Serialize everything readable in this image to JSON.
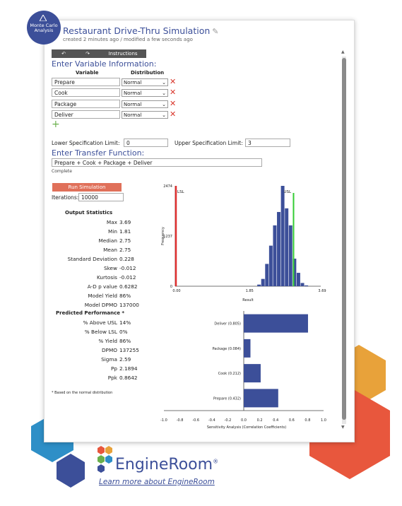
{
  "badge": {
    "line1": "Monte Carlo",
    "line2": "Analysis"
  },
  "header": {
    "title": "Restaurant Drive-Thru Simulation",
    "subtitle": "created 2 minutes ago / modified a few seconds ago"
  },
  "toolbar": {
    "undo_icon": "undo-icon",
    "redo_icon": "redo-icon",
    "instructions_label": "Instructions"
  },
  "variables": {
    "heading": "Enter Variable Information:",
    "col_variable": "Variable",
    "col_distribution": "Distribution",
    "rows": [
      {
        "name": "Prepare",
        "distribution": "Normal"
      },
      {
        "name": "Cook",
        "distribution": "Normal"
      },
      {
        "name": "Package",
        "distribution": "Normal"
      },
      {
        "name": "Deliver",
        "distribution": "Normal"
      }
    ]
  },
  "limits": {
    "lsl_label": "Lower Specification Limit:",
    "lsl_value": "0",
    "usl_label": "Upper Specification Limit:",
    "usl_value": "3"
  },
  "transfer": {
    "heading": "Enter Transfer Function:",
    "value": "Prepare + Cook + Package + Deliver",
    "status": "Complete"
  },
  "simulation": {
    "run_label": "Run Simulation",
    "iterations_label": "Iterations:",
    "iterations_value": "10000"
  },
  "output": {
    "heading": "Output Statistics",
    "stats": [
      {
        "label": "Max",
        "value": "3.69"
      },
      {
        "label": "Min",
        "value": "1.81"
      },
      {
        "label": "Median",
        "value": "2.75"
      },
      {
        "label": "Mean",
        "value": "2.75"
      },
      {
        "label": "Standard Deviation",
        "value": "0.228"
      },
      {
        "label": "Skew",
        "value": "-0.012"
      },
      {
        "label": "Kurtosis",
        "value": "-0.012"
      },
      {
        "label": "A-D p value",
        "value": "0.6282"
      },
      {
        "label": "Model Yield",
        "value": "86%"
      },
      {
        "label": "Model DPMO",
        "value": "137000"
      }
    ]
  },
  "predicted": {
    "heading": "Predicted Performance *",
    "stats": [
      {
        "label": "% Above USL",
        "value": "14%"
      },
      {
        "label": "% Below LSL",
        "value": "0%"
      },
      {
        "label": "% Yield",
        "value": "86%"
      },
      {
        "label": "DPMO",
        "value": "137255"
      },
      {
        "label": "Sigma",
        "value": "2.59"
      },
      {
        "label": "Pp",
        "value": "2.1894"
      },
      {
        "label": "Ppk",
        "value": "0.8642"
      }
    ],
    "footnote": "* Based on the normal distribution"
  },
  "brand": {
    "name": "EngineRoom",
    "reg": "®",
    "link": "Learn more about EngineRoom"
  },
  "colors": {
    "accent": "#3c4f99",
    "bar": "#3c4f99",
    "lsl": "#e03030",
    "usl": "#33cc33",
    "run": "#e0705a",
    "hex_orange": "#e8a23a",
    "hex_red": "#e8573d",
    "hex_blue": "#2e8fc7",
    "hex_navy": "#3c4f99"
  },
  "chart_data": [
    {
      "type": "bar",
      "title": "",
      "xlabel": "Result",
      "ylabel": "Frequency",
      "yticks": [
        "0",
        "1237",
        "2474"
      ],
      "xticks": [
        "0.00",
        "1.85",
        "3.69"
      ],
      "ylim": [
        0,
        2474
      ],
      "xlim": [
        0,
        3.69
      ],
      "lsl": {
        "label": "LSL",
        "x": 0
      },
      "usl": {
        "label": "USL",
        "x": 3
      },
      "bins": [
        {
          "x": 2.13,
          "value": 40
        },
        {
          "x": 2.23,
          "value": 180
        },
        {
          "x": 2.33,
          "value": 550
        },
        {
          "x": 2.43,
          "value": 1000
        },
        {
          "x": 2.53,
          "value": 1500
        },
        {
          "x": 2.63,
          "value": 1830
        },
        {
          "x": 2.73,
          "value": 2474
        },
        {
          "x": 2.83,
          "value": 1920
        },
        {
          "x": 2.93,
          "value": 1500
        },
        {
          "x": 3.03,
          "value": 680
        },
        {
          "x": 3.13,
          "value": 330
        },
        {
          "x": 3.23,
          "value": 80
        },
        {
          "x": 3.33,
          "value": 20
        }
      ]
    },
    {
      "type": "bar",
      "orientation": "horizontal",
      "xlabel": "Sensitivity Analysis (Correlation Coefficients)",
      "xticks": [
        "-1.0",
        "-0.8",
        "-0.6",
        "-0.4",
        "-0.2",
        "0.0",
        "0.2",
        "0.4",
        "0.6",
        "0.8",
        "1.0"
      ],
      "xlim": [
        -1,
        1
      ],
      "categories": [
        "Deliver (0.805)",
        "Package (0.084)",
        "Cook (0.212)",
        "Prepare (0.432)"
      ],
      "values": [
        0.805,
        0.084,
        0.212,
        0.432
      ]
    }
  ]
}
